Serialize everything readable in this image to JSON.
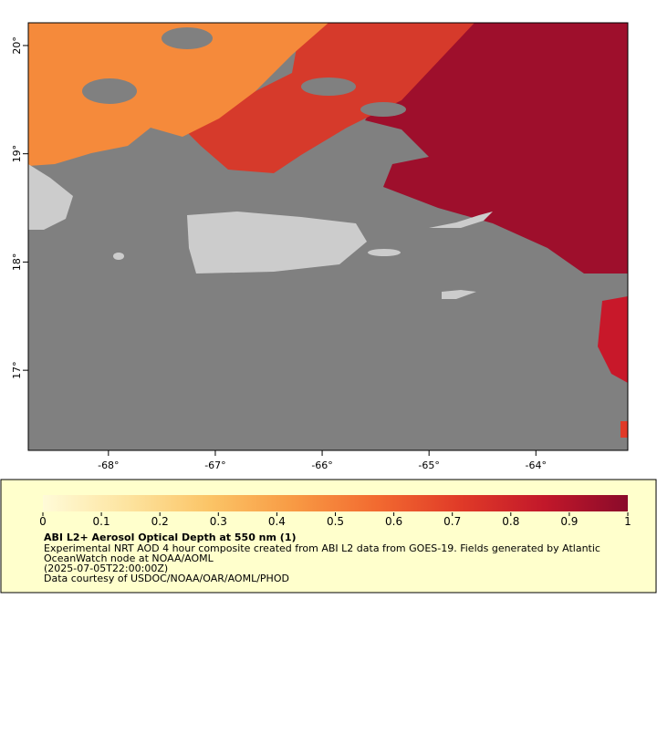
{
  "map": {
    "xlim": [
      -68.75,
      -63.14
    ],
    "ylim": [
      16.26,
      20.21
    ],
    "xticks": [
      {
        "value": -68,
        "label": "-68°"
      },
      {
        "value": -67,
        "label": "-67°"
      },
      {
        "value": -66,
        "label": "-66°"
      },
      {
        "value": -65,
        "label": "-65°"
      },
      {
        "value": -64,
        "label": "-64°"
      }
    ],
    "yticks": [
      {
        "value": 17,
        "label": "17°"
      },
      {
        "value": 18,
        "label": "18°"
      },
      {
        "value": 19,
        "label": "19°"
      },
      {
        "value": 20,
        "label": "20°"
      }
    ]
  },
  "colorbar": {
    "lim": [
      0,
      1
    ],
    "ticks": [
      0,
      0.1,
      0.2,
      0.3,
      0.4,
      0.5,
      0.6,
      0.7,
      0.8,
      0.9,
      1
    ],
    "colors": [
      "#fffbd8",
      "#fde4a0",
      "#fbc466",
      "#f89a44",
      "#f26a30",
      "#e03a28",
      "#c2182a",
      "#8a0a2a"
    ]
  },
  "legend": {
    "title": "ABI L2+ Aerosol Optical Depth at 550 nm (1)",
    "lines": [
      "Experimental NRT AOD 4 hour composite created from ABI L2 data from GOES-19. Fields generated by Atlantic",
      "OceanWatch node at NOAA/AOML",
      "(2025-07-05T22:00:00Z)",
      "Data courtesy of USDOC/NOAA/OAR/AOML/PHOD"
    ]
  }
}
